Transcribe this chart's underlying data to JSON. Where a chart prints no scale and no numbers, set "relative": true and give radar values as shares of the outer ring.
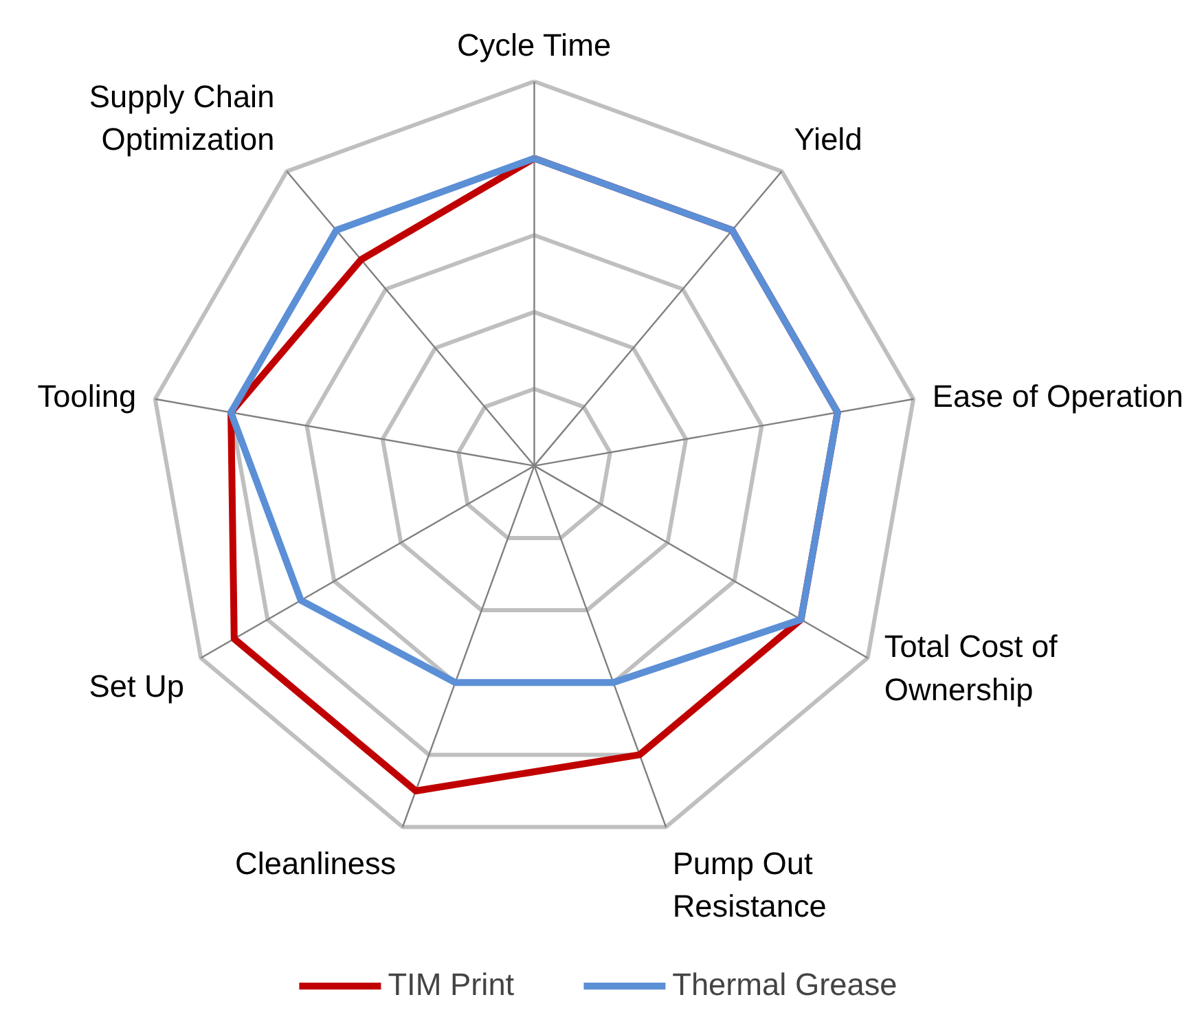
{
  "chart_data": {
    "type": "radar",
    "relative": true,
    "categories": [
      "Cycle Time",
      "Yield",
      "Ease of Operation",
      "Total Cost of\nOwnership",
      "Pump Out\nResistance",
      "Cleanliness",
      "Set Up",
      "Tooling",
      "Supply Chain\nOptimization"
    ],
    "series": [
      {
        "name": "TIM Print",
        "color": "#c00000",
        "values": [
          0.8,
          0.8,
          0.8,
          0.8,
          0.8,
          0.9,
          0.9,
          0.8,
          0.7
        ]
      },
      {
        "name": "Thermal Grease",
        "color": "#5b8fd6",
        "values": [
          0.8,
          0.8,
          0.8,
          0.8,
          0.6,
          0.6,
          0.7,
          0.8,
          0.8
        ]
      }
    ],
    "legend": "bottom",
    "grid": true,
    "marker": "none",
    "line_style": "solid"
  }
}
